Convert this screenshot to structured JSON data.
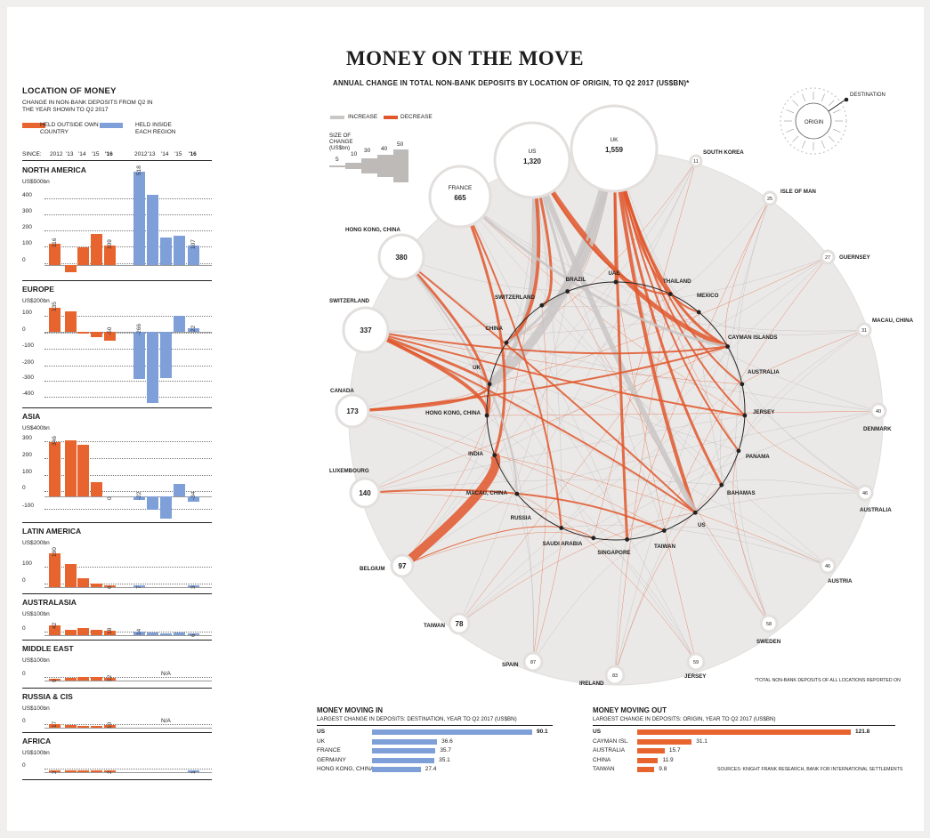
{
  "title": "MONEY ON THE MOVE",
  "subtitle": "ANNUAL CHANGE IN TOTAL NON-BANK DEPOSITS BY LOCATION OF ORIGIN, TO Q2 2017 (US$BN)*",
  "left": {
    "title": "LOCATION OF MONEY",
    "subtitle": "CHANGE IN NON-BANK DEPOSITS FROM Q2 IN THE YEAR SHOWN TO Q2 2017",
    "legend_outside": "HELD OUTSIDE OWN COUNTRY",
    "legend_inside": "HELD INSIDE EACH REGION",
    "since_label": "SINCE:"
  },
  "colors": {
    "outside": "#e8642e",
    "inside": "#7f9fd9",
    "increase": "#c9c6c4",
    "decrease": "#e0572b"
  },
  "chart_data": [
    {
      "type": "bar",
      "title": "NORTH AMERICA",
      "ylabel": "US$500bn",
      "categories": [
        "2012",
        "'13",
        "'14",
        "'15",
        "'16"
      ],
      "series": [
        {
          "name": "HELD OUTSIDE OWN COUNTRY",
          "values": [
            116,
            -38,
            100,
            174,
            109
          ]
        },
        {
          "name": "HELD INSIDE EACH REGION",
          "values": [
            518,
            390,
            155,
            165,
            107
          ]
        }
      ],
      "labels_outside": [
        "116",
        "",
        "",
        "",
        "109"
      ],
      "labels_inside": [
        "518",
        "",
        "",
        "",
        "107"
      ],
      "ylim": [
        -50,
        500
      ],
      "ticks": [
        "400",
        "300",
        "200",
        "100",
        "0"
      ]
    },
    {
      "type": "bar",
      "title": "EUROPE",
      "ylabel": "US$200bn",
      "categories": [
        "2012",
        "'13",
        "'14",
        "'15",
        "'16"
      ],
      "series": [
        {
          "name": "HELD OUTSIDE OWN COUNTRY",
          "values": [
            135,
            115,
            -4,
            -30,
            -50
          ]
        },
        {
          "name": "HELD INSIDE EACH REGION",
          "values": [
            -266,
            -400,
            -262,
            88,
            22
          ]
        }
      ],
      "labels_outside": [
        "135",
        "",
        "",
        "",
        "-50"
      ],
      "labels_inside": [
        "-266",
        "",
        "",
        "",
        "22"
      ],
      "ylim": [
        -420,
        200
      ],
      "ticks": [
        "100",
        "0",
        "-100",
        "-200",
        "-300",
        "-400"
      ]
    },
    {
      "type": "bar",
      "title": "ASIA",
      "ylabel": "US$400bn",
      "categories": [
        "2012",
        "'13",
        "'14",
        "'15",
        "'16"
      ],
      "series": [
        {
          "name": "HELD OUTSIDE OWN COUNTRY",
          "values": [
            346,
            360,
            330,
            90,
            0
          ]
        },
        {
          "name": "HELD INSIDE EACH REGION",
          "values": [
            -22,
            -85,
            -140,
            80,
            -34
          ]
        }
      ],
      "labels_outside": [
        "346",
        "",
        "",
        "",
        "0"
      ],
      "labels_inside": [
        "-22",
        "",
        "",
        "",
        "-34"
      ],
      "ylim": [
        -150,
        400
      ],
      "ticks": [
        "300",
        "200",
        "100",
        "0",
        "-100"
      ]
    },
    {
      "type": "bar",
      "title": "LATIN AMERICA",
      "ylabel": "US$200bn",
      "categories": [
        "2012",
        "'13",
        "'14",
        "'15",
        "'16"
      ],
      "series": [
        {
          "name": "HELD OUTSIDE OWN COUNTRY",
          "values": [
            190,
            130,
            50,
            20,
            6
          ]
        },
        {
          "name": "HELD INSIDE EACH REGION",
          "values": [
            7,
            0,
            0,
            0,
            3
          ]
        }
      ],
      "labels_outside": [
        "190",
        "",
        "",
        "",
        "6"
      ],
      "labels_inside": [
        "7",
        "",
        "",
        "",
        "3"
      ],
      "ylim": [
        0,
        200
      ],
      "ticks": [
        "100",
        "0"
      ]
    },
    {
      "type": "bar",
      "title": "AUSTRALASIA",
      "ylabel": "US$100bn",
      "categories": [
        "2012",
        "'13",
        "'14",
        "'15",
        "'16"
      ],
      "series": [
        {
          "name": "HELD OUTSIDE OWN COUNTRY",
          "values": [
            42,
            25,
            30,
            22,
            18
          ]
        },
        {
          "name": "HELD INSIDE EACH REGION",
          "values": [
            14,
            10,
            8,
            10,
            6
          ]
        }
      ],
      "labels_outside": [
        "42",
        "",
        "",
        "",
        "18"
      ],
      "labels_inside": [
        "14",
        "",
        "",
        "",
        "6"
      ],
      "ylim": [
        0,
        100
      ],
      "ticks": [
        "0"
      ]
    },
    {
      "type": "bar",
      "title": "MIDDLE EAST",
      "ylabel": "US$100bn",
      "categories": [
        "2012",
        "'13",
        "'14",
        "'15",
        "'16"
      ],
      "series": [
        {
          "name": "HELD OUTSIDE OWN COUNTRY",
          "values": [
            9,
            12,
            14,
            16,
            12
          ]
        }
      ],
      "labels_outside": [
        "9",
        "",
        "",
        "",
        "12"
      ],
      "inside_note": "N/A",
      "ylim": [
        0,
        100
      ],
      "ticks": [
        "0"
      ]
    },
    {
      "type": "bar",
      "title": "RUSSIA & CIS",
      "ylabel": "US$100bn",
      "categories": [
        "2012",
        "'13",
        "'14",
        "'15",
        "'16"
      ],
      "series": [
        {
          "name": "HELD OUTSIDE OWN COUNTRY",
          "values": [
            17,
            12,
            8,
            6,
            10
          ]
        }
      ],
      "labels_outside": [
        "17",
        "",
        "",
        "",
        "10"
      ],
      "inside_note": "N/A",
      "ylim": [
        0,
        100
      ],
      "ticks": [
        "0"
      ]
    },
    {
      "type": "bar",
      "title": "AFRICA",
      "ylabel": "US$100bn",
      "categories": [
        "2012",
        "'13",
        "'14",
        "'15",
        "'16"
      ],
      "series": [
        {
          "name": "HELD OUTSIDE OWN COUNTRY",
          "values": [
            2,
            1,
            1,
            1,
            2
          ]
        },
        {
          "name": "HELD INSIDE EACH REGION",
          "values": [
            0,
            0,
            0,
            0,
            1
          ]
        }
      ],
      "labels_outside": [
        "2",
        "",
        "",
        "",
        "2"
      ],
      "labels_inside": [
        "",
        "",
        "",
        "",
        "1"
      ],
      "ylim": [
        0,
        100
      ],
      "ticks": [
        "0"
      ]
    },
    {
      "type": "bar",
      "title": "MONEY MOVING IN",
      "subtitle": "LARGEST CHANGE IN DEPOSITS: DESTINATION, YEAR TO Q2 2017 (US$BN)",
      "categories": [
        "US",
        "UK",
        "FRANCE",
        "GERMANY",
        "HONG KONG, CHINA"
      ],
      "values": [
        90.1,
        36.6,
        35.7,
        35.1,
        27.4
      ],
      "labels": [
        "90.1",
        "36.6",
        "35.7",
        "35.1",
        "27.4"
      ]
    },
    {
      "type": "bar",
      "title": "MONEY MOVING OUT",
      "subtitle": "LARGEST CHANGE IN DEPOSITS: ORIGIN, YEAR TO Q2 2017 (US$BN)",
      "categories": [
        "US",
        "CAYMAN ISL.",
        "AUSTRALIA",
        "CHINA",
        "TAIWAN"
      ],
      "values": [
        121.8,
        31.1,
        15.7,
        11.9,
        9.8
      ],
      "labels": [
        "121.8",
        "31.1",
        "15.7",
        "11.9",
        "9.8"
      ]
    }
  ],
  "flow": {
    "legend_increase": "INCREASE",
    "legend_decrease": "DECREASE",
    "size_title": "SIZE OF CHANGE (US$bn)",
    "size_values": [
      "5",
      "10",
      "30",
      "40",
      "50"
    ],
    "origin_label": "ORIGIN",
    "destination_label": "DESTINATION",
    "destinations": [
      {
        "name": "UK",
        "value": "1,559"
      },
      {
        "name": "US",
        "value": "1,320"
      },
      {
        "name": "FRANCE",
        "value": "665"
      },
      {
        "name": "HONG KONG, CHINA",
        "value": "380"
      },
      {
        "name": "SWITZERLAND",
        "value": "337"
      },
      {
        "name": "CANADA",
        "value": "173"
      },
      {
        "name": "LUXEMBOURG",
        "value": "140"
      },
      {
        "name": "BELGIUM",
        "value": "97"
      },
      {
        "name": "TAIWAN",
        "value": "78"
      },
      {
        "name": "SPAIN",
        "value": "87"
      },
      {
        "name": "IRELAND",
        "value": "83"
      },
      {
        "name": "JERSEY",
        "value": "59"
      },
      {
        "name": "SWEDEN",
        "value": "58"
      },
      {
        "name": "AUSTRIA",
        "value": "46"
      },
      {
        "name": "AUSTRALIA",
        "value": "46"
      },
      {
        "name": "DENMARK",
        "value": "40"
      },
      {
        "name": "MACAU, CHINA",
        "value": "31"
      },
      {
        "name": "GUERNSEY",
        "value": "27"
      },
      {
        "name": "ISLE OF MAN",
        "value": "25"
      },
      {
        "name": "SOUTH KOREA",
        "value": "11"
      }
    ],
    "origins": [
      "BRAZIL",
      "UAE",
      "THAILAND",
      "SWITZERLAND",
      "MEXICO",
      "CHINA",
      "CAYMAN ISLANDS",
      "UK",
      "AUSTRALIA",
      "HONG KONG, CHINA",
      "JERSEY",
      "INDIA",
      "PANAMA",
      "MACAU, CHINA",
      "BAHAMAS",
      "RUSSIA",
      "US",
      "SAUDI ARABIA",
      "SINGAPORE",
      "TAIWAN"
    ]
  },
  "footnote": "*TOTAL NON-BANK DEPOSITS OF ALL LOCATIONS REPORTED ON",
  "sources": "SOURCES: KNIGHT FRANK RESEARCH, BANK FOR INTERNATIONAL SETTLEMENTS"
}
